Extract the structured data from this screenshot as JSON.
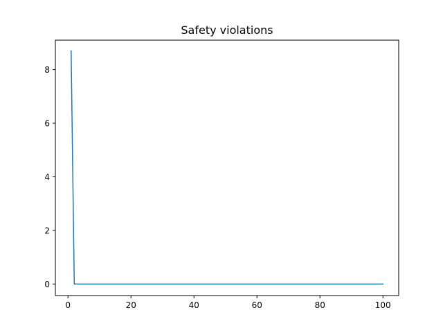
{
  "chart_data": {
    "type": "line",
    "title": "Safety violations",
    "xlabel": "",
    "ylabel": "",
    "xlim": [
      -4,
      105
    ],
    "ylim": [
      -0.43,
      9.1
    ],
    "x_ticks": [
      0,
      20,
      40,
      60,
      80,
      100
    ],
    "y_ticks": [
      0,
      2,
      4,
      6,
      8
    ],
    "grid": false,
    "legend": "none",
    "series": [
      {
        "color": "#1f77b4",
        "x": [
          1,
          2,
          3,
          4,
          5,
          6,
          7,
          8,
          9,
          10,
          11,
          12,
          13,
          14,
          15,
          16,
          17,
          18,
          19,
          20,
          21,
          22,
          23,
          24,
          25,
          26,
          27,
          28,
          29,
          30,
          31,
          32,
          33,
          34,
          35,
          36,
          37,
          38,
          39,
          40,
          41,
          42,
          43,
          44,
          45,
          46,
          47,
          48,
          49,
          50,
          51,
          52,
          53,
          54,
          55,
          56,
          57,
          58,
          59,
          60,
          61,
          62,
          63,
          64,
          65,
          66,
          67,
          68,
          69,
          70,
          71,
          72,
          73,
          74,
          75,
          76,
          77,
          78,
          79,
          80,
          81,
          82,
          83,
          84,
          85,
          86,
          87,
          88,
          89,
          90,
          91,
          92,
          93,
          94,
          95,
          96,
          97,
          98,
          99,
          100
        ],
        "y": [
          8.7,
          0,
          0,
          0,
          0,
          0,
          0,
          0,
          0,
          0,
          0,
          0,
          0,
          0,
          0,
          0,
          0,
          0,
          0,
          0,
          0,
          0,
          0,
          0,
          0,
          0,
          0,
          0,
          0,
          0,
          0,
          0,
          0,
          0,
          0,
          0,
          0,
          0,
          0,
          0,
          0,
          0,
          0,
          0,
          0,
          0,
          0,
          0,
          0,
          0,
          0,
          0,
          0,
          0,
          0,
          0,
          0,
          0,
          0,
          0,
          0,
          0,
          0,
          0,
          0,
          0,
          0,
          0,
          0,
          0,
          0,
          0,
          0,
          0,
          0,
          0,
          0,
          0,
          0,
          0,
          0,
          0,
          0,
          0,
          0,
          0,
          0,
          0,
          0,
          0,
          0,
          0,
          0,
          0,
          0,
          0,
          0,
          0,
          0,
          0
        ]
      }
    ]
  }
}
